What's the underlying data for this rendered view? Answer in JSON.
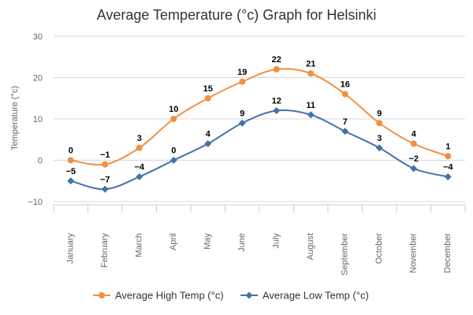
{
  "chart_data": {
    "type": "line",
    "title": "Average Temperature (°c) Graph for Helsinki",
    "xlabel": "",
    "ylabel": "Temperature (°c)",
    "categories": [
      "January",
      "February",
      "March",
      "April",
      "May",
      "June",
      "July",
      "August",
      "September",
      "October",
      "November",
      "December"
    ],
    "ylim": [
      -10,
      30
    ],
    "yticks": [
      -10,
      0,
      10,
      20,
      30
    ],
    "grid": true,
    "legend_position": "bottom",
    "series": [
      {
        "name": "Average High Temp (°c)",
        "color": "#f28f43",
        "marker": "circle",
        "values": [
          0,
          -1,
          3,
          10,
          15,
          19,
          22,
          21,
          16,
          9,
          4,
          1
        ]
      },
      {
        "name": "Average Low Temp (°c)",
        "color": "#4572a7",
        "marker": "diamond",
        "values": [
          -5,
          -7,
          -4,
          0,
          4,
          9,
          12,
          11,
          7,
          3,
          -2,
          -4
        ]
      }
    ]
  }
}
